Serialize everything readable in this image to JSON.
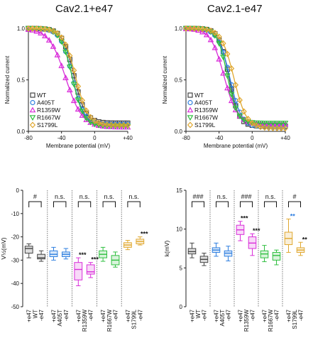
{
  "colors": {
    "WT": "#444444",
    "A405T": "#2f7fe0",
    "R1359W": "#d92ed9",
    "R1667W": "#2fbf3f",
    "S1799L": "#e0a830"
  },
  "chart_data": [
    {
      "type": "scatter",
      "title": "Cav2.1+e47",
      "xlabel": "Membrane potential (mV)",
      "ylabel": "Normalized current",
      "xlim": [
        -80,
        40
      ],
      "ylim": [
        0,
        1
      ],
      "x_ticks": [
        "-80",
        "-40",
        "0",
        "+40"
      ],
      "y_ticks": [
        "0.0",
        "0.5",
        "1.0"
      ],
      "legend_position": "bottom-left",
      "series": [
        {
          "name": "WT",
          "color": "#444444",
          "marker": "square",
          "v_half": -25,
          "k": 7,
          "tail": 0.08
        },
        {
          "name": "A405T",
          "color": "#2f7fe0",
          "marker": "circle",
          "v_half": -27,
          "k": 7,
          "tail": 0.07
        },
        {
          "name": "R1359W",
          "color": "#d92ed9",
          "marker": "triangle-up",
          "v_half": -35,
          "k": 10,
          "tail": 0.04
        },
        {
          "name": "R1667W",
          "color": "#2fbf3f",
          "marker": "triangle-down",
          "v_half": -27,
          "k": 7,
          "tail": 0.05
        },
        {
          "name": "S1799L",
          "color": "#e0a830",
          "marker": "diamond",
          "v_half": -23,
          "k": 7.5,
          "tail": 0.06
        }
      ]
    },
    {
      "type": "scatter",
      "title": "Cav2.1-e47",
      "xlabel": "Membrane potential (mV)",
      "ylabel": "Normalized current",
      "xlim": [
        -80,
        40
      ],
      "ylim": [
        0,
        1
      ],
      "x_ticks": [
        "-80",
        "-40",
        "0",
        "+40"
      ],
      "y_ticks": [
        "0.0",
        "0.5",
        "1.0"
      ],
      "legend_position": "bottom-left",
      "series": [
        {
          "name": "WT",
          "color": "#444444",
          "marker": "square",
          "v_half": -28,
          "k": 6,
          "tail": 0.05
        },
        {
          "name": "A405T",
          "color": "#2f7fe0",
          "marker": "circle",
          "v_half": -27,
          "k": 7,
          "tail": 0.04
        },
        {
          "name": "R1359W",
          "color": "#d92ed9",
          "marker": "triangle-up",
          "v_half": -34,
          "k": 8,
          "tail": 0.07
        },
        {
          "name": "R1667W",
          "color": "#2fbf3f",
          "marker": "triangle-down",
          "v_half": -30,
          "k": 6,
          "tail": 0.08
        },
        {
          "name": "S1799L",
          "color": "#e0a830",
          "marker": "diamond",
          "v_half": -22,
          "k": 7.5,
          "tail": 0.03
        }
      ]
    },
    {
      "type": "box",
      "ylabel": "V½(mV)",
      "ylim": [
        -50,
        0
      ],
      "y_ticks": [
        "0",
        "-10",
        "-20",
        "-30",
        "-40",
        "-50"
      ],
      "categories": [
        "+e47",
        "-e47",
        "+e47",
        "-e47",
        "+e47",
        "-e47",
        "+e47",
        "-e47",
        "+e47",
        "-e47"
      ],
      "groups": [
        "WT",
        "A405T",
        "R1359W",
        "R1667W",
        "S1799L"
      ],
      "group_labels": [
        "WT",
        "A405T",
        "R1359W",
        "R1667W",
        "S1799L"
      ],
      "comparisons": [
        "#",
        "n.s.",
        "n.s.",
        "n.s.",
        "n.s."
      ],
      "boxes": [
        {
          "group": "WT",
          "color": "#444444",
          "min": -29,
          "q1": -27,
          "median": -25,
          "q3": -24,
          "max": -23,
          "star": ""
        },
        {
          "group": "WT",
          "color": "#444444",
          "min": -30.5,
          "q1": -29.5,
          "median": -29,
          "q3": -27.5,
          "max": -26,
          "star": ""
        },
        {
          "group": "A405T",
          "color": "#2f7fe0",
          "min": -30,
          "q1": -28.5,
          "median": -27.5,
          "q3": -26,
          "max": -24.5,
          "star": ""
        },
        {
          "group": "A405T",
          "color": "#2f7fe0",
          "min": -29.5,
          "q1": -28.5,
          "median": -27.5,
          "q3": -26.5,
          "max": -25,
          "star": ""
        },
        {
          "group": "R1359W",
          "color": "#d92ed9",
          "min": -41,
          "q1": -38.5,
          "median": -34,
          "q3": -31,
          "max": -29,
          "star": "***"
        },
        {
          "group": "R1359W",
          "color": "#d92ed9",
          "min": -37.5,
          "q1": -36,
          "median": -35,
          "q3": -32,
          "max": -31,
          "star": "***"
        },
        {
          "group": "R1667W",
          "color": "#2fbf3f",
          "min": -30.5,
          "q1": -29,
          "median": -27.5,
          "q3": -26,
          "max": -24.5,
          "star": ""
        },
        {
          "group": "R1667W",
          "color": "#2fbf3f",
          "min": -33,
          "q1": -32,
          "median": -30,
          "q3": -28,
          "max": -26.5,
          "star": ""
        },
        {
          "group": "S1799L",
          "color": "#e0a830",
          "min": -25.5,
          "q1": -24.5,
          "median": -23.5,
          "q3": -22.5,
          "max": -21.5,
          "star": ""
        },
        {
          "group": "S1799L",
          "color": "#e0a830",
          "min": -23.5,
          "q1": -23,
          "median": -22,
          "q3": -21,
          "max": -20,
          "star": "***"
        }
      ]
    },
    {
      "type": "box",
      "ylabel": "k(mV)",
      "ylim": [
        0,
        15
      ],
      "y_ticks": [
        "15",
        "10",
        "5",
        "0"
      ],
      "categories": [
        "+e47",
        "-e47",
        "+e47",
        "-e47",
        "+e47",
        "-e47",
        "+e47",
        "-e47",
        "+e47",
        "-e47"
      ],
      "groups": [
        "WT",
        "A405T",
        "R1359W",
        "R1667W",
        "S1799L"
      ],
      "group_labels": [
        "WT",
        "A405T",
        "R1359W",
        "R1667W",
        "S1799L"
      ],
      "comparisons": [
        "###",
        "n.s.",
        "###",
        "n.s.",
        "#"
      ],
      "boxes": [
        {
          "group": "WT",
          "color": "#444444",
          "min": 6.3,
          "q1": 6.8,
          "median": 7.1,
          "q3": 7.5,
          "max": 8.2,
          "star": ""
        },
        {
          "group": "WT",
          "color": "#444444",
          "min": 5.3,
          "q1": 5.7,
          "median": 6.1,
          "q3": 6.5,
          "max": 6.9,
          "star": ""
        },
        {
          "group": "A405T",
          "color": "#2f7fe0",
          "min": 6.5,
          "q1": 7.0,
          "median": 7.3,
          "q3": 7.6,
          "max": 8.2,
          "star": ""
        },
        {
          "group": "A405T",
          "color": "#2f7fe0",
          "min": 5.9,
          "q1": 6.5,
          "median": 6.9,
          "q3": 7.2,
          "max": 7.8,
          "star": ""
        },
        {
          "group": "R1359W",
          "color": "#d92ed9",
          "min": 8.5,
          "q1": 9.3,
          "median": 9.9,
          "q3": 10.5,
          "max": 11.0,
          "star": "***"
        },
        {
          "group": "R1359W",
          "color": "#d92ed9",
          "min": 6.6,
          "q1": 7.5,
          "median": 8.2,
          "q3": 9.0,
          "max": 9.4,
          "star": "***"
        },
        {
          "group": "R1667W",
          "color": "#2fbf3f",
          "min": 5.8,
          "q1": 6.3,
          "median": 6.8,
          "q3": 7.2,
          "max": 7.9,
          "star": ""
        },
        {
          "group": "R1667W",
          "color": "#2fbf3f",
          "min": 5.4,
          "q1": 6.0,
          "median": 6.6,
          "q3": 7.0,
          "max": 7.3,
          "star": ""
        },
        {
          "group": "S1799L",
          "color": "#e0a830",
          "min": 7.0,
          "q1": 8.0,
          "median": 8.8,
          "q3": 9.6,
          "max": 11.3,
          "star": "**"
        },
        {
          "group": "S1799L",
          "color": "#e0a830",
          "min": 6.6,
          "q1": 7.0,
          "median": 7.3,
          "q3": 7.6,
          "max": 8.3,
          "star": "**"
        }
      ]
    }
  ]
}
